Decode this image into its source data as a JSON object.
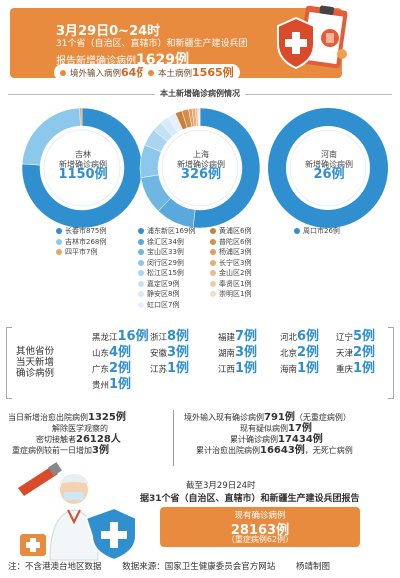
{
  "header": {
    "date": "3月29日0~24时",
    "line1": "31个省（自治区、直辖市）和新疆生产建设兵团",
    "line2_prefix": "报告新增确诊病例",
    "line2_value": "1629例",
    "imported_label": "境外输入病例",
    "imported_value": "64例",
    "local_label": "本土病例",
    "local_value": "1565例"
  },
  "section_local": {
    "title": "本土新增确诊病例情况",
    "donuts": [
      {
        "name": "吉林",
        "label": "新增确诊病例",
        "value": "1150例"
      },
      {
        "name": "上海",
        "label": "新增确诊病例",
        "value": "326例"
      },
      {
        "name": "河南",
        "label": "新增确诊病例",
        "value": "26例"
      }
    ],
    "legend_jilin": [
      {
        "text": "长春市875例",
        "color": "#2f8fcf"
      },
      {
        "text": "吉林市268例",
        "color": "#8cc8ec"
      },
      {
        "text": "四平市7例",
        "color": "#e0a86a"
      }
    ],
    "legend_shanghai_a": [
      {
        "text": "浦东新区169例",
        "color": "#2f8fcf"
      },
      {
        "text": "徐汇区34例",
        "color": "#5aa9dc"
      },
      {
        "text": "宝山区33例",
        "color": "#6fb6e3"
      },
      {
        "text": "闵行区29例",
        "color": "#8cc8ec"
      },
      {
        "text": "松江区15例",
        "color": "#a9d5f0"
      },
      {
        "text": "嘉定区9例",
        "color": "#c4e2f5"
      },
      {
        "text": "静安区8例",
        "color": "#d6ebf8"
      },
      {
        "text": "虹口区7例",
        "color": "#e4f1fa"
      }
    ],
    "legend_shanghai_b": [
      {
        "text": "黄浦区6例",
        "color": "#c98039"
      },
      {
        "text": "普陀区6例",
        "color": "#d48e4b"
      },
      {
        "text": "杨浦区3例",
        "color": "#dd9f62"
      },
      {
        "text": "长宁区3例",
        "color": "#e4ae78"
      },
      {
        "text": "金山区2例",
        "color": "#eabd90"
      },
      {
        "text": "奉贤区1例",
        "color": "#f0cda9"
      },
      {
        "text": "崇明区1例",
        "color": "#f5dcc2"
      }
    ],
    "legend_henan": [
      {
        "text": "周口市26例",
        "color": "#2f8fcf"
      }
    ],
    "colors": {
      "blue": "#2f8fcf",
      "light": "#cfe6f6",
      "orange": "#e88b3e"
    }
  },
  "section_provinces": {
    "label": "其他省份当天新增确诊病例",
    "label_lines": [
      "其他省份",
      "当天新增",
      "确诊病例"
    ],
    "items": [
      {
        "name": "黑龙江",
        "value": "16例"
      },
      {
        "name": "浙江",
        "value": "8例"
      },
      {
        "name": "福建",
        "value": "7例"
      },
      {
        "name": "河北",
        "value": "6例"
      },
      {
        "name": "辽宁",
        "value": "5例"
      },
      {
        "name": "山东",
        "value": "4例"
      },
      {
        "name": "安徽",
        "value": "3例"
      },
      {
        "name": "湖南",
        "value": "3例"
      },
      {
        "name": "北京",
        "value": "2例"
      },
      {
        "name": "天津",
        "value": "2例"
      },
      {
        "name": "广东",
        "value": "2例"
      },
      {
        "name": "江苏",
        "value": "1例"
      },
      {
        "name": "江西",
        "value": "1例"
      },
      {
        "name": "海南",
        "value": "1例"
      },
      {
        "name": "重庆",
        "value": "1例"
      },
      {
        "name": "贵州",
        "value": "1例"
      }
    ]
  },
  "section_stats": {
    "left": [
      {
        "label": "当日新增治愈出院病例",
        "value": "1325例"
      },
      {
        "label": "解除医学观察的",
        "value": ""
      },
      {
        "label": "密切接触者",
        "value": "26128人"
      },
      {
        "label": "重症病例较前一日增加",
        "value": "3例"
      }
    ],
    "right": [
      {
        "label": "境外输入现有确诊病例",
        "value": "791例",
        "suffix": "（无重症病例）"
      },
      {
        "label": "现有疑似病例",
        "value": "17例",
        "suffix": ""
      },
      {
        "label": "累计确诊病例",
        "value": "17434例",
        "suffix": ""
      },
      {
        "label": "累计治愈出院病例",
        "value": "16643例",
        "suffix": "，无死亡病例"
      }
    ]
  },
  "section_bottom": {
    "line1": "截至3月29日24时",
    "line2": "据31个省（自治区、直辖市）和新疆生产建设兵团报告",
    "now_label": "现有确诊病例",
    "now_value": "28163例",
    "severe": "（重症病例62例）"
  },
  "footer": {
    "note": "注：不含港澳台地区数据",
    "source": "数据来源：国家卫生健康委员会官方网站",
    "author": "杨靖制图"
  }
}
